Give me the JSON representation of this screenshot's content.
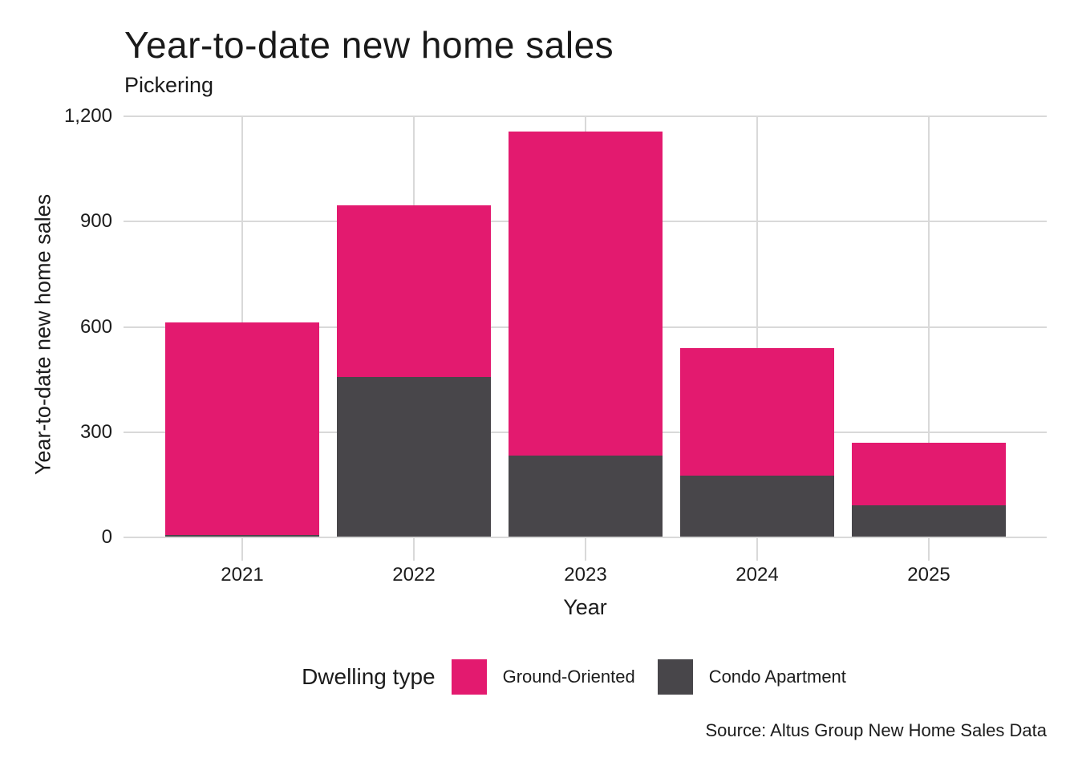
{
  "chart": {
    "title": "Year-to-date new home sales",
    "subtitle": "Pickering",
    "xlabel": "Year",
    "ylabel": "Year-to-date new home sales",
    "legend_title": "Dwelling type",
    "source": "Source: Altus Group New Home Sales Data"
  },
  "chart_data": {
    "type": "bar",
    "stacked": true,
    "title": "Year-to-date new home sales",
    "subtitle": "Pickering",
    "categories": [
      "2021",
      "2022",
      "2023",
      "2024",
      "2025"
    ],
    "series": [
      {
        "name": "Ground-Oriented",
        "color": "#E31A6F",
        "values": [
          606,
          489,
          923,
          364,
          177
        ]
      },
      {
        "name": "Condo Apartment",
        "color": "#48464A",
        "values": [
          5,
          455,
          231,
          174,
          90
        ]
      }
    ],
    "stack_order_bottom_to_top": [
      "Condo Apartment",
      "Ground-Oriented"
    ],
    "totals": [
      611,
      944,
      1154,
      538,
      267
    ],
    "xlabel": "Year",
    "ylabel": "Year-to-date new home sales",
    "ylim": [
      0,
      1200
    ],
    "yticks": [
      0,
      300,
      600,
      900,
      1200
    ],
    "ytick_labels": [
      "0",
      "300",
      "600",
      "900",
      "1,200"
    ],
    "grid": true,
    "legend_title": "Dwelling type",
    "legend_position": "bottom",
    "source": "Source: Altus Group New Home Sales Data",
    "colors": {
      "ground_oriented": "#E31A6F",
      "condo_apartment": "#48464A",
      "gridline": "#D9D9D9",
      "text": "#1C1C1C",
      "background": "#FFFFFF"
    }
  }
}
